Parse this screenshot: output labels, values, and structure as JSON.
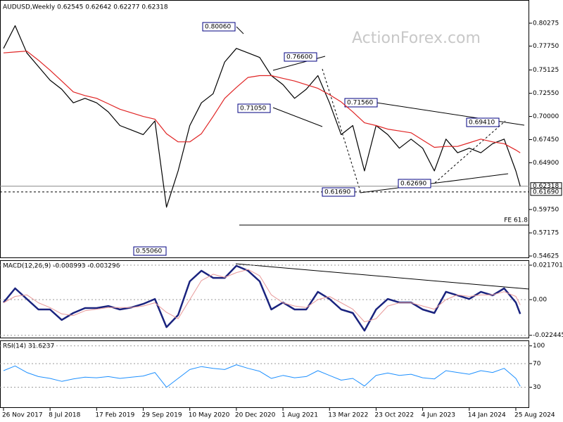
{
  "chart_data": [
    {
      "type": "line",
      "title": "AUDUSD,Weekly  0.62545 0.62642 0.62277 0.62318",
      "watermark": "ActionForex.com",
      "x": [
        0,
        8,
        16,
        24,
        32,
        40,
        48,
        56,
        64,
        72,
        80,
        88,
        96,
        104,
        112,
        120,
        128,
        136,
        144,
        152,
        160,
        168,
        176,
        184,
        192,
        200,
        208,
        216,
        224,
        232,
        240,
        248,
        256,
        264,
        272,
        280,
        288,
        296,
        304,
        312,
        320,
        328,
        336,
        344,
        352,
        355
      ],
      "xlim": [
        -2.4,
        361.2
      ],
      "series": [
        {
          "color": "#000000",
          "values": [
            0.775,
            0.8,
            0.77,
            0.755,
            0.74,
            0.73,
            0.715,
            0.72,
            0.715,
            0.705,
            0.69,
            0.685,
            0.68,
            0.695,
            0.6,
            0.64,
            0.69,
            0.715,
            0.725,
            0.76,
            0.775,
            0.77,
            0.765,
            0.745,
            0.735,
            0.72,
            0.73,
            0.745,
            0.715,
            0.68,
            0.69,
            0.64,
            0.69,
            0.68,
            0.665,
            0.675,
            0.665,
            0.64,
            0.675,
            0.66,
            0.665,
            0.66,
            0.67,
            0.675,
            0.64,
            0.62318
          ]
        },
        {
          "color": "#e02424",
          "values": [
            0.77,
            0.771,
            0.772,
            0.762,
            0.751,
            0.739,
            0.727,
            0.723,
            0.72,
            0.714,
            0.708,
            0.704,
            0.7,
            0.697,
            0.681,
            0.672,
            0.672,
            0.681,
            0.7,
            0.72,
            0.732,
            0.743,
            0.745,
            0.745,
            0.742,
            0.739,
            0.735,
            0.731,
            0.724,
            0.716,
            0.705,
            0.693,
            0.69,
            0.686,
            0.684,
            0.682,
            0.674,
            0.666,
            0.667,
            0.667,
            0.671,
            0.675,
            0.672,
            0.67,
            0.663,
            0.66
          ]
        }
      ],
      "ylim": [
        0.5447,
        0.8283
      ],
      "yticks": [
        0.80275,
        {
          "value": 0.7775,
          "label": "0.77750"
        },
        0.75125,
        {
          "value": 0.7255,
          "label": "0.72550"
        },
        {
          "value": 0.7,
          "label": "0.70000"
        },
        {
          "value": 0.6745,
          "label": "0.67450"
        },
        {
          "value": 0.649,
          "label": "0.64900"
        },
        {
          "value": 0.5975,
          "label": "0.59750"
        },
        0.57175,
        0.54625
      ],
      "levels": [
        {
          "value": 0.62318,
          "label": "0.62318",
          "dash": false,
          "boxed": true
        },
        {
          "value": 0.6169,
          "label": "0.61690",
          "dash": true,
          "boxed": true
        },
        {
          "value": 0.5803,
          "label": "FE 61.8",
          "dash": false,
          "boxed": false
        }
      ],
      "annotations": [
        "0.80060",
        "0.76600",
        "0.71050",
        "0.71560",
        "0.69410",
        "0.62690",
        "0.61690",
        "0.55060"
      ]
    },
    {
      "type": "line",
      "title": "MACD(12,26,9) -0.008993 -0.003296",
      "x": [
        0,
        8,
        16,
        24,
        32,
        40,
        48,
        56,
        64,
        72,
        80,
        88,
        96,
        104,
        112,
        120,
        128,
        136,
        144,
        152,
        160,
        168,
        176,
        184,
        192,
        200,
        208,
        216,
        224,
        232,
        240,
        248,
        256,
        264,
        272,
        280,
        288,
        296,
        304,
        312,
        320,
        328,
        336,
        344,
        352,
        355
      ],
      "xlim": [
        -2.4,
        361.2
      ],
      "series": [
        {
          "color": "#1a237e",
          "width": 2.5,
          "values": [
            -0.0018,
            0.0071,
            0.0004,
            -0.0062,
            -0.0062,
            -0.0128,
            -0.0084,
            -0.0053,
            -0.0053,
            -0.004,
            -0.0062,
            -0.0049,
            -0.0027,
            0.0004,
            -0.0173,
            -0.0097,
            0.0115,
            0.0182,
            0.0137,
            0.0137,
            0.0213,
            0.0182,
            0.0115,
            -0.0062,
            -0.0018,
            -0.0062,
            -0.0062,
            0.0049,
            0.0004,
            -0.0062,
            -0.0084,
            -0.0195,
            -0.0062,
            0.0004,
            -0.0018,
            -0.0018,
            -0.0062,
            -0.0084,
            0.0049,
            0.0027,
            0.0004,
            0.0049,
            0.0027,
            0.0071,
            -0.0018,
            -0.008993
          ]
        },
        {
          "color": "#e89a9a",
          "width": 1,
          "values": [
            -0.002,
            0.002,
            0.003,
            -0.002,
            -0.005,
            -0.009,
            -0.01,
            -0.007,
            -0.006,
            -0.005,
            -0.005,
            -0.005,
            -0.004,
            -0.002,
            -0.008,
            -0.012,
            0.0,
            0.012,
            0.016,
            0.014,
            0.017,
            0.019,
            0.015,
            0.003,
            -0.002,
            -0.004,
            -0.005,
            0.0,
            0.002,
            -0.002,
            -0.006,
            -0.014,
            -0.012,
            -0.004,
            -0.002,
            -0.002,
            -0.004,
            -0.006,
            0.0,
            0.003,
            0.002,
            0.003,
            0.003,
            0.005,
            0.002,
            -0.003296
          ]
        }
      ],
      "ylim": [
        -0.0239,
        0.0248
      ],
      "yticks": [
        0.021701,
        {
          "value": 0,
          "label": "0.00"
        },
        -0.022445
      ],
      "grid": true
    },
    {
      "type": "line",
      "title": "RSI(14) 31.6237",
      "x": [
        0,
        8,
        16,
        24,
        32,
        40,
        48,
        56,
        64,
        72,
        80,
        88,
        96,
        104,
        112,
        120,
        128,
        136,
        144,
        152,
        160,
        168,
        176,
        184,
        192,
        200,
        208,
        216,
        224,
        232,
        240,
        248,
        256,
        264,
        272,
        280,
        288,
        296,
        304,
        312,
        320,
        328,
        336,
        344,
        352,
        355
      ],
      "xlim": [
        -2.4,
        361.2
      ],
      "series": [
        {
          "color": "#1e90ff",
          "width": 1,
          "values": [
            58,
            66,
            55,
            48,
            45,
            40,
            44,
            47,
            46,
            48,
            45,
            47,
            49,
            55,
            30,
            45,
            60,
            65,
            62,
            60,
            68,
            62,
            57,
            45,
            50,
            46,
            48,
            58,
            50,
            42,
            45,
            32,
            50,
            54,
            50,
            52,
            46,
            44,
            58,
            55,
            52,
            58,
            55,
            62,
            45,
            31.6237
          ]
        }
      ],
      "ylim": [
        -5,
        108
      ],
      "yticks": [
        100,
        70,
        30
      ],
      "grid": true,
      "xticks": [
        {
          "value": 0,
          "label": "26 Nov 2017"
        },
        {
          "value": 32,
          "label": "8 Jul 2018"
        },
        {
          "value": 64,
          "label": "17 Feb 2019"
        },
        {
          "value": 96,
          "label": "29 Sep 2019"
        },
        {
          "value": 128,
          "label": "10 May 2020"
        },
        {
          "value": 160,
          "label": "20 Dec 2020"
        },
        {
          "value": 192,
          "label": "1 Aug 2021"
        },
        {
          "value": 224,
          "label": "13 Mar 2022"
        },
        {
          "value": 256,
          "label": "23 Oct 2022"
        },
        {
          "value": 288,
          "label": "4 Jun 2023"
        },
        {
          "value": 320,
          "label": "14 Jan 2024"
        },
        {
          "value": 352,
          "label": "25 Aug 2024"
        }
      ]
    }
  ]
}
